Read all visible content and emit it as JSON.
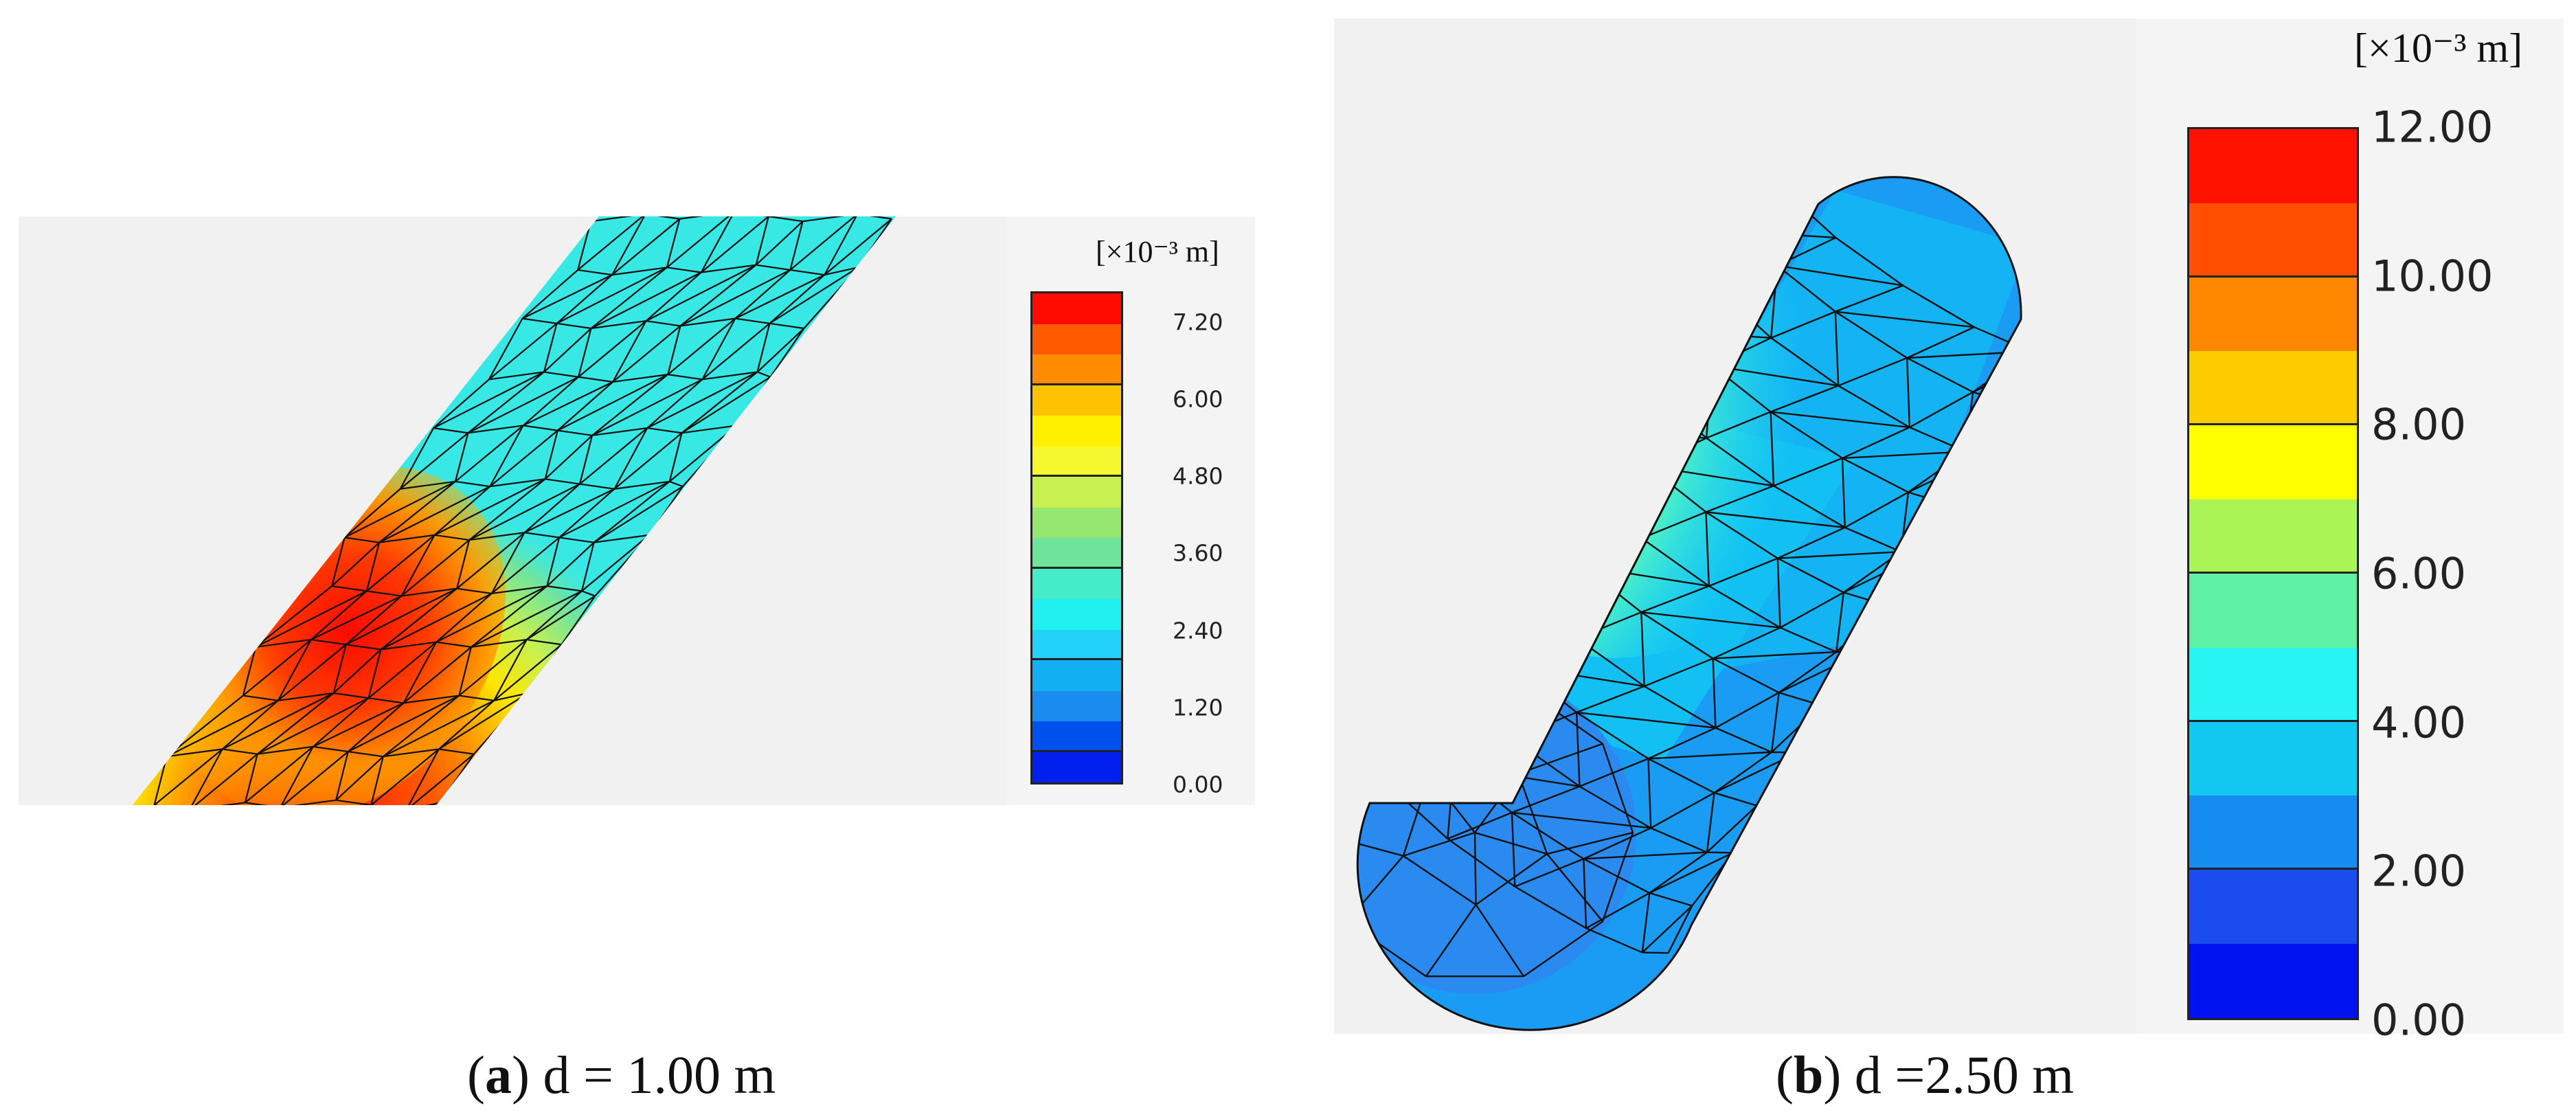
{
  "panels": [
    {
      "letter": "a",
      "caption": "d = 1.00 m",
      "unit": "[×10⁻³ m]",
      "ticks": [
        "7.20",
        "6.00",
        "4.80",
        "3.60",
        "2.40",
        "1.20",
        "0.00"
      ],
      "bands": [
        "#ff0a00",
        "#ff5a00",
        "#ff8c00",
        "#ffc200",
        "#fff000",
        "#f6f830",
        "#c8f050",
        "#96e672",
        "#6ee49a",
        "#44ecc8",
        "#20f0f0",
        "#22d2f8",
        "#12b0f2",
        "#1a8cf0",
        "#0050f0",
        "#0020f0"
      ]
    },
    {
      "letter": "b",
      "caption": "d =2.50 m",
      "unit": "[×10⁻³ m]",
      "ticks": [
        "12.00",
        "10.00",
        "8.00",
        "6.00",
        "4.00",
        "2.00",
        "0.00"
      ],
      "bands": [
        "#ff1200",
        "#ff4e00",
        "#ff8800",
        "#ffcc00",
        "#ffff00",
        "#aaf555",
        "#5ef0a4",
        "#28f4f4",
        "#12c8f0",
        "#148cf0",
        "#1a4cf0",
        "#0012f0"
      ]
    }
  ]
}
